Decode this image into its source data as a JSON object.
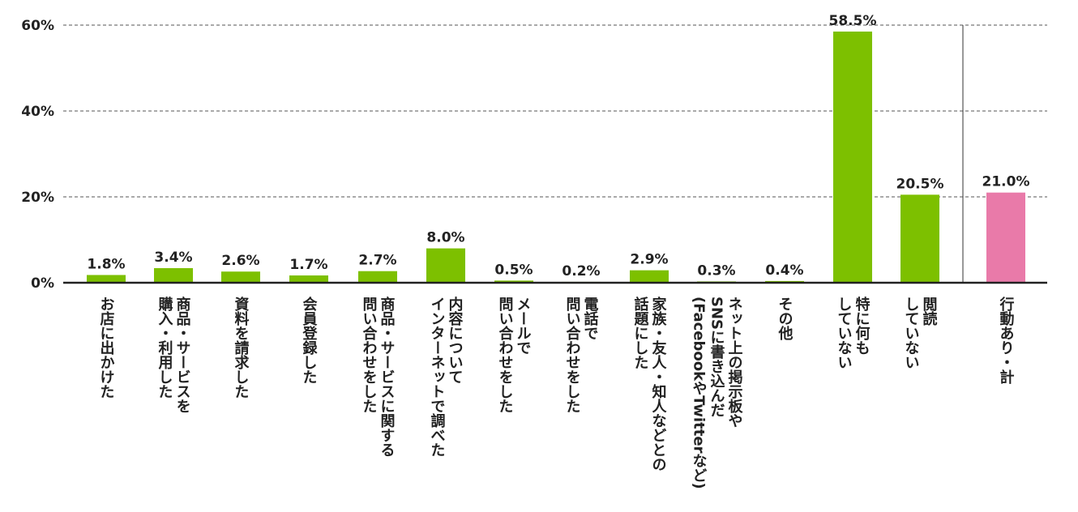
{
  "chart_data": {
    "type": "bar",
    "ylim": [
      0,
      60
    ],
    "yticks": [
      {
        "value": 0,
        "label": "0%"
      },
      {
        "value": 20,
        "label": "20%"
      },
      {
        "value": 40,
        "label": "40%"
      },
      {
        "value": 60,
        "label": "60%"
      }
    ],
    "grid": "dashed horizontal",
    "categories": [
      {
        "lines": [
          "お店に出かけた"
        ],
        "value": 1.8,
        "label": "1.8%",
        "color": "#7dc000"
      },
      {
        "lines": [
          "商品・サービスを",
          "購入・利用した"
        ],
        "value": 3.4,
        "label": "3.4%",
        "color": "#7dc000"
      },
      {
        "lines": [
          "資料を請求した"
        ],
        "value": 2.6,
        "label": "2.6%",
        "color": "#7dc000"
      },
      {
        "lines": [
          "会員登録した"
        ],
        "value": 1.7,
        "label": "1.7%",
        "color": "#7dc000"
      },
      {
        "lines": [
          "商品・サービスに関する",
          "問い合わせをした"
        ],
        "value": 2.7,
        "label": "2.7%",
        "color": "#7dc000"
      },
      {
        "lines": [
          "内容について",
          "インターネットで調べた"
        ],
        "value": 8.0,
        "label": "8.0%",
        "color": "#7dc000"
      },
      {
        "lines": [
          "メールで",
          "問い合わせをした"
        ],
        "value": 0.5,
        "label": "0.5%",
        "color": "#7dc000"
      },
      {
        "lines": [
          "電話で",
          "問い合わせをした"
        ],
        "value": 0.2,
        "label": "0.2%",
        "color": "#7dc000"
      },
      {
        "lines": [
          "家族・友人・知人などとの",
          "話題にした"
        ],
        "value": 2.9,
        "label": "2.9%",
        "color": "#7dc000"
      },
      {
        "lines": [
          "ネット上の掲示板や",
          "SNSに書き込んだ",
          "(FacebookやTwitterなど)"
        ],
        "value": 0.3,
        "label": "0.3%",
        "color": "#7dc000"
      },
      {
        "lines": [
          "その他"
        ],
        "value": 0.4,
        "label": "0.4%",
        "color": "#7dc000"
      },
      {
        "lines": [
          "特に何も",
          "していない"
        ],
        "value": 58.5,
        "label": "58.5%",
        "color": "#7dc000"
      },
      {
        "lines": [
          "閲読",
          "していない"
        ],
        "value": 20.5,
        "label": "20.5%",
        "color": "#7dc000"
      },
      {
        "lines": [
          "行動あり・計"
        ],
        "value": 21.0,
        "label": "21.0%",
        "color": "#e97aa9"
      }
    ]
  }
}
